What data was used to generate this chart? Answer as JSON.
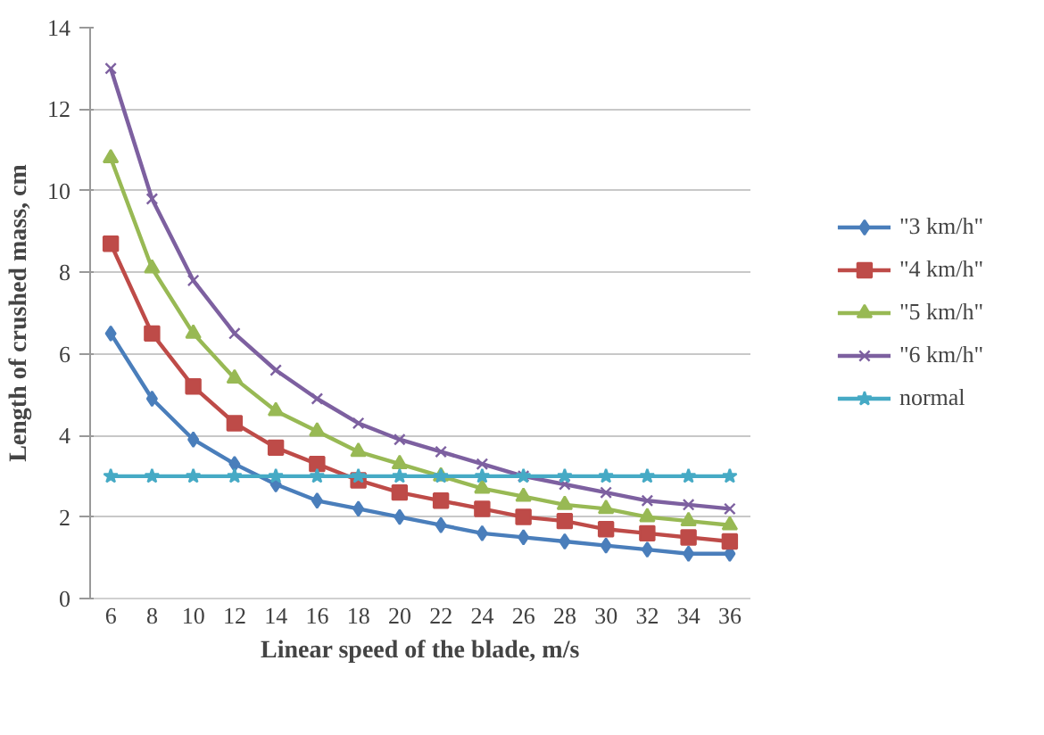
{
  "chart_data": {
    "type": "line",
    "xlabel": "Linear speed of the blade, m/s",
    "ylabel": "Length of crushed mass, cm",
    "categories": [
      "6",
      "8",
      "10",
      "12",
      "14",
      "16",
      "18",
      "20",
      "22",
      "24",
      "26",
      "28",
      "30",
      "32",
      "34",
      "36"
    ],
    "series": [
      {
        "name": "\"3 km/h\"",
        "color": "#4a7ebb",
        "marker": "diamond",
        "values": [
          6.5,
          4.9,
          3.9,
          3.3,
          2.8,
          2.4,
          2.2,
          2.0,
          1.8,
          1.6,
          1.5,
          1.4,
          1.3,
          1.2,
          1.1,
          1.1
        ]
      },
      {
        "name": "\"4 km/h\"",
        "color": "#be4b48",
        "marker": "square",
        "values": [
          8.7,
          6.5,
          5.2,
          4.3,
          3.7,
          3.3,
          2.9,
          2.6,
          2.4,
          2.2,
          2.0,
          1.9,
          1.7,
          1.6,
          1.5,
          1.4
        ]
      },
      {
        "name": "\"5 km/h\"",
        "color": "#98b954",
        "marker": "triangle",
        "values": [
          10.8,
          8.1,
          6.5,
          5.4,
          4.6,
          4.1,
          3.6,
          3.3,
          3.0,
          2.7,
          2.5,
          2.3,
          2.2,
          2.0,
          1.9,
          1.8
        ]
      },
      {
        "name": "\"6 km/h\"",
        "color": "#7d60a0",
        "marker": "cross",
        "values": [
          13.0,
          9.8,
          7.8,
          6.5,
          5.6,
          4.9,
          4.3,
          3.9,
          3.6,
          3.3,
          3.0,
          2.8,
          2.6,
          2.4,
          2.3,
          2.2
        ]
      },
      {
        "name": "normal",
        "color": "#46aac5",
        "marker": "star",
        "values": [
          3,
          3,
          3,
          3,
          3,
          3,
          3,
          3,
          3,
          3,
          3,
          3,
          3,
          3,
          3,
          3
        ]
      }
    ],
    "ylim": [
      0,
      14
    ],
    "yticks": [
      0,
      2,
      4,
      6,
      8,
      10,
      12,
      14
    ],
    "grid": "y",
    "legend": "right",
    "line_style": "solid"
  }
}
